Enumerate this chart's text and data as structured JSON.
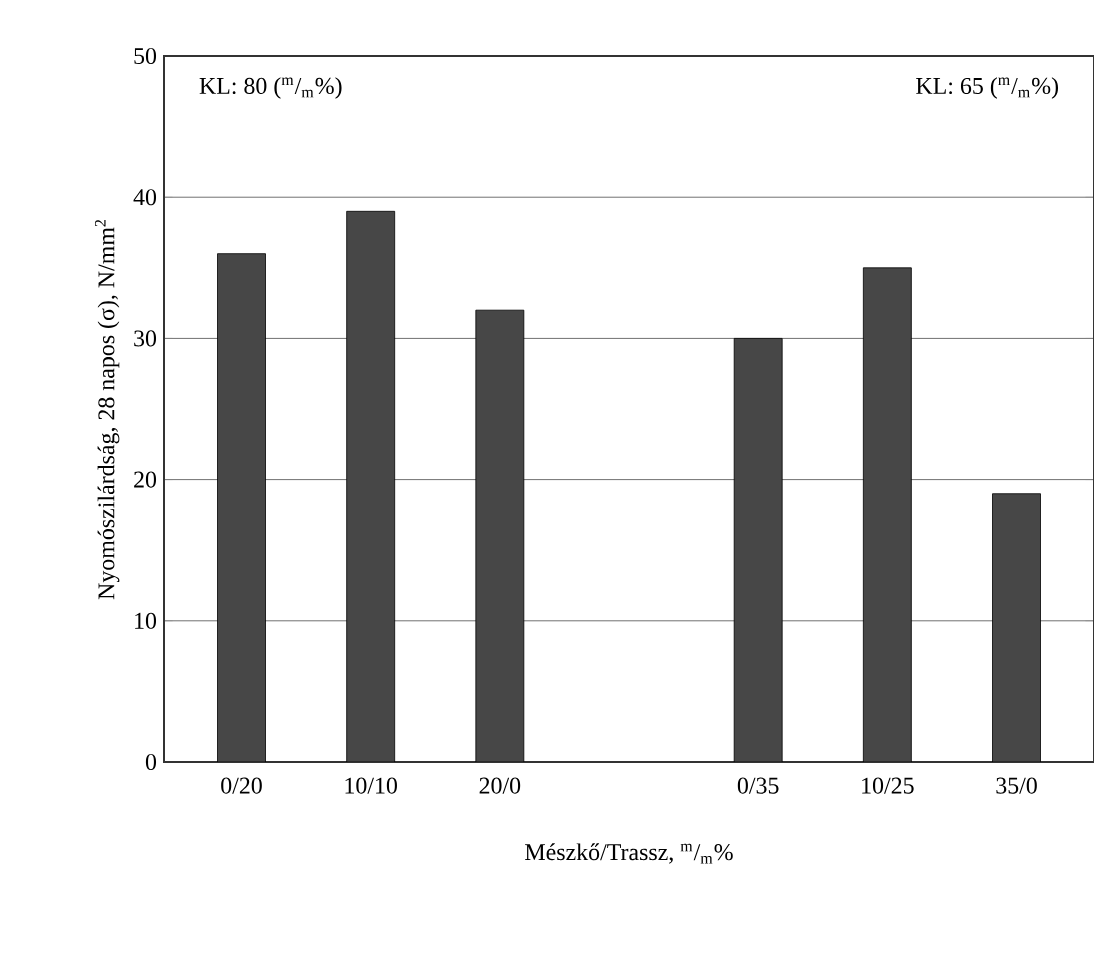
{
  "chart_data": {
    "type": "bar",
    "categories": [
      "0/20",
      "10/10",
      "20/0",
      null,
      "0/35",
      "10/25",
      "35/0"
    ],
    "values": [
      36,
      39,
      32,
      null,
      30,
      35,
      19
    ],
    "color": "#474747",
    "ylabel": "Nyomószilárdság, 28 napos (σ), N/mm$^{2}$",
    "xlabel": "Mészkő/Trassz, $^{m}$/$_{m}$%",
    "annotations": [
      "KL: 80 ($^{m}$/$_{m}$%)",
      "KL: 65 ($^{m}$/$_{m}$%)"
    ],
    "ylim": [
      0,
      50
    ],
    "yticks": [
      0,
      10,
      20,
      30,
      40,
      50
    ],
    "grid": "y"
  }
}
